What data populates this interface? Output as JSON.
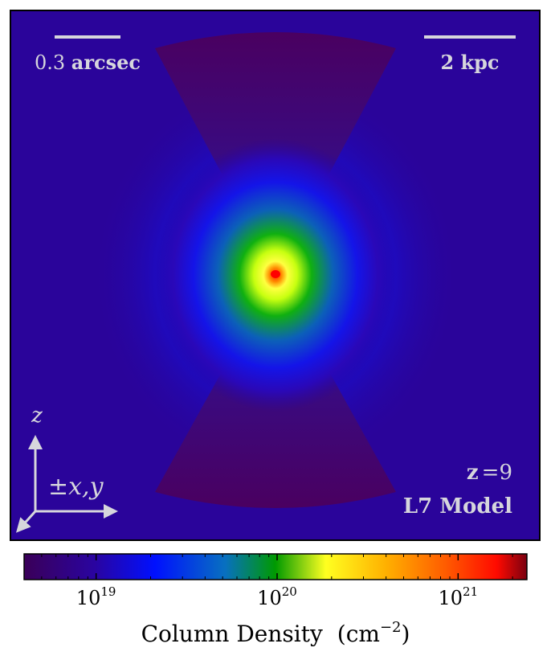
{
  "chart_data": {
    "type": "heatmap",
    "panel": {
      "scale_bar_angular": {
        "value": "0.3",
        "unit": "arcsec"
      },
      "scale_bar_physical": {
        "value": "2",
        "unit": "kpc"
      },
      "redshift": {
        "label": "z",
        "eq": "=",
        "value": "9"
      },
      "model": "L7 Model",
      "axes_labels": {
        "vertical": "z",
        "horizontal": "±x,y"
      }
    },
    "colorbar": {
      "label": "Column Density",
      "units": "cm",
      "units_exponent": "−2",
      "scale": "log",
      "range": [
        4e+18,
        2.4e+21
      ],
      "ticks": [
        {
          "value": 1e+19,
          "base": "10",
          "exp": "19"
        },
        {
          "value": 1e+20,
          "base": "10",
          "exp": "20"
        },
        {
          "value": 1e+21,
          "base": "10",
          "exp": "21"
        }
      ],
      "colormap": [
        "#3a0058",
        "#1a0a9c",
        "#0000ff",
        "#00aa00",
        "#ffff00",
        "#ff9900",
        "#ff0000",
        "#6b0000"
      ]
    },
    "field": {
      "background_value": 5e+18,
      "peak_value": 2e+21,
      "peak_location": "center",
      "cone_lobes": "top and bottom, low density"
    }
  }
}
